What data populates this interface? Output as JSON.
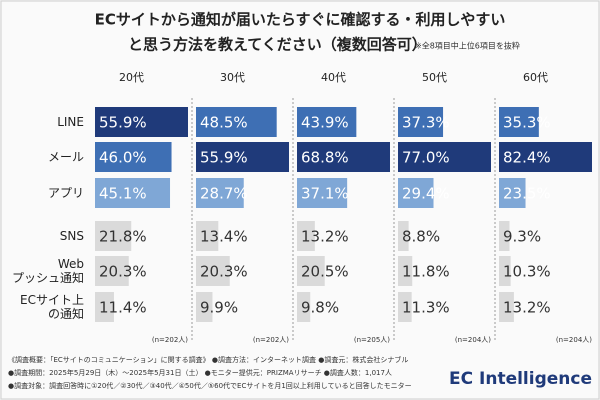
{
  "chart_data": {
    "type": "bar",
    "orientation": "horizontal",
    "title": [
      "ECサイトから通知が届いたらすぐに確認する・利用しやすい",
      "と思う方法を教えてください（複数回答可）"
    ],
    "note": "※全8項目中上位6項目を抜粋",
    "categories": [
      [
        "LINE"
      ],
      [
        "メール"
      ],
      [
        "アプリ"
      ],
      [
        "SNS"
      ],
      [
        "Web",
        "プッシュ通知"
      ],
      [
        "ECサイト上",
        "の通知"
      ]
    ],
    "series": [
      {
        "name": "20代",
        "n_label": "(n=202人)",
        "xlim": [
          0,
          55.9
        ],
        "values": [
          55.9,
          46.0,
          45.1,
          21.8,
          20.3,
          11.4
        ],
        "value_labels": [
          "55.9%",
          "46.0%",
          "45.1%",
          "21.8%",
          "20.3%",
          "11.4%"
        ],
        "colors": [
          "#1f3a7a",
          "#3e6fb4",
          "#7fa7d6",
          "#dadada",
          "#dadada",
          "#dadada"
        ]
      },
      {
        "name": "30代",
        "n_label": "(n=202人)",
        "xlim": [
          0,
          55.9
        ],
        "values": [
          48.5,
          55.9,
          28.7,
          13.4,
          20.3,
          9.9
        ],
        "value_labels": [
          "48.5%",
          "55.9%",
          "28.7%",
          "13.4%",
          "20.3%",
          "9.9%"
        ],
        "colors": [
          "#3e6fb4",
          "#1f3a7a",
          "#7fa7d6",
          "#dadada",
          "#dadada",
          "#dadada"
        ]
      },
      {
        "name": "40代",
        "n_label": "(n=205人)",
        "xlim": [
          0,
          68.8
        ],
        "values": [
          43.9,
          68.8,
          37.1,
          13.2,
          20.5,
          9.8
        ],
        "value_labels": [
          "43.9%",
          "68.8%",
          "37.1%",
          "13.2%",
          "20.5%",
          "9.8%"
        ],
        "colors": [
          "#3e6fb4",
          "#1f3a7a",
          "#7fa7d6",
          "#dadada",
          "#dadada",
          "#dadada"
        ]
      },
      {
        "name": "50代",
        "n_label": "(n=204人)",
        "xlim": [
          0,
          77.0
        ],
        "values": [
          37.3,
          77.0,
          29.4,
          8.8,
          11.8,
          11.3
        ],
        "value_labels": [
          "37.3%",
          "77.0%",
          "29.4%",
          "8.8%",
          "11.8%",
          "11.3%"
        ],
        "colors": [
          "#3e6fb4",
          "#1f3a7a",
          "#7fa7d6",
          "#dadada",
          "#dadada",
          "#dadada"
        ]
      },
      {
        "name": "60代",
        "n_label": "(n=204人)",
        "xlim": [
          0,
          82.4
        ],
        "values": [
          35.3,
          82.4,
          23.5,
          9.3,
          10.3,
          13.2
        ],
        "value_labels": [
          "35.3%",
          "82.4%",
          "23.5%",
          "9.3%",
          "10.3%",
          "13.2%"
        ],
        "colors": [
          "#3e6fb4",
          "#1f3a7a",
          "#7fa7d6",
          "#dadada",
          "#dadada",
          "#dadada"
        ]
      }
    ]
  },
  "footer": {
    "lines": [
      "《調査概要：「ECサイトのコミュニケーション」に関する調査》 ●調査方法：インターネット調査 ●調査元：株式会社シナブル",
      "●調査期間：2025年5月29日（木）～2025年5月31日（土） ●モニター提供元：PRIZMAリサーチ ●調査人数：1,017人",
      "●調査対象：調査回答時に①20代／②30代／③40代／④50代／⑤60代でECサイトを月1回以上利用していると回答したモニター"
    ],
    "logo": "EC Intelligence"
  }
}
